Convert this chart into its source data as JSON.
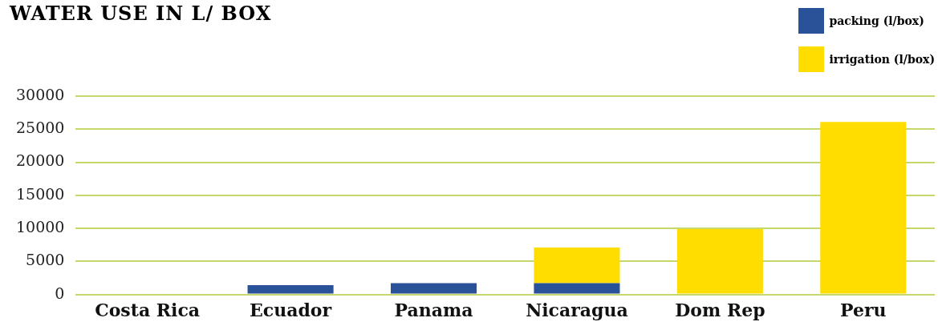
{
  "chart_data": {
    "type": "bar",
    "title": "WATER USE IN L/ BOX",
    "categories": [
      "Costa Rica",
      "Ecuador",
      "Panama",
      "Nicaragua",
      "Dom Rep",
      "Peru"
    ],
    "stacked": true,
    "series": [
      {
        "name": "packing (l/box)",
        "color": "#2a5298",
        "values": [
          0,
          1400,
          1700,
          1700,
          0,
          0
        ]
      },
      {
        "name": "irrigation (l/box)",
        "color": "#ffdd00",
        "values": [
          0,
          0,
          0,
          5400,
          9900,
          26100
        ]
      }
    ],
    "ylim": [
      0,
      30000
    ],
    "yticks": [
      0,
      5000,
      10000,
      15000,
      20000,
      25000,
      30000
    ],
    "grid": "y",
    "legend": "top right"
  }
}
